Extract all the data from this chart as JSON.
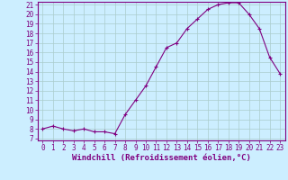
{
  "x": [
    0,
    1,
    2,
    3,
    4,
    5,
    6,
    7,
    8,
    9,
    10,
    11,
    12,
    13,
    14,
    15,
    16,
    17,
    18,
    19,
    20,
    21,
    22,
    23
  ],
  "y": [
    8.0,
    8.3,
    8.0,
    7.8,
    8.0,
    7.7,
    7.7,
    7.5,
    9.5,
    11.0,
    12.5,
    14.5,
    16.5,
    17.0,
    18.5,
    19.5,
    20.5,
    21.0,
    21.2,
    21.2,
    20.0,
    18.5,
    15.5,
    13.8
  ],
  "ylim": [
    7,
    21
  ],
  "xlim": [
    -0.5,
    23.5
  ],
  "yticks": [
    7,
    8,
    9,
    10,
    11,
    12,
    13,
    14,
    15,
    16,
    17,
    18,
    19,
    20,
    21
  ],
  "xticks": [
    0,
    1,
    2,
    3,
    4,
    5,
    6,
    7,
    8,
    9,
    10,
    11,
    12,
    13,
    14,
    15,
    16,
    17,
    18,
    19,
    20,
    21,
    22,
    23
  ],
  "line_color": "#800080",
  "marker": "+",
  "bg_color": "#cceeff",
  "grid_color": "#aacccc",
  "xlabel": "Windchill (Refroidissement éolien,°C)",
  "tick_color": "#800080",
  "label_fontsize": 6.5,
  "tick_fontsize": 5.5
}
